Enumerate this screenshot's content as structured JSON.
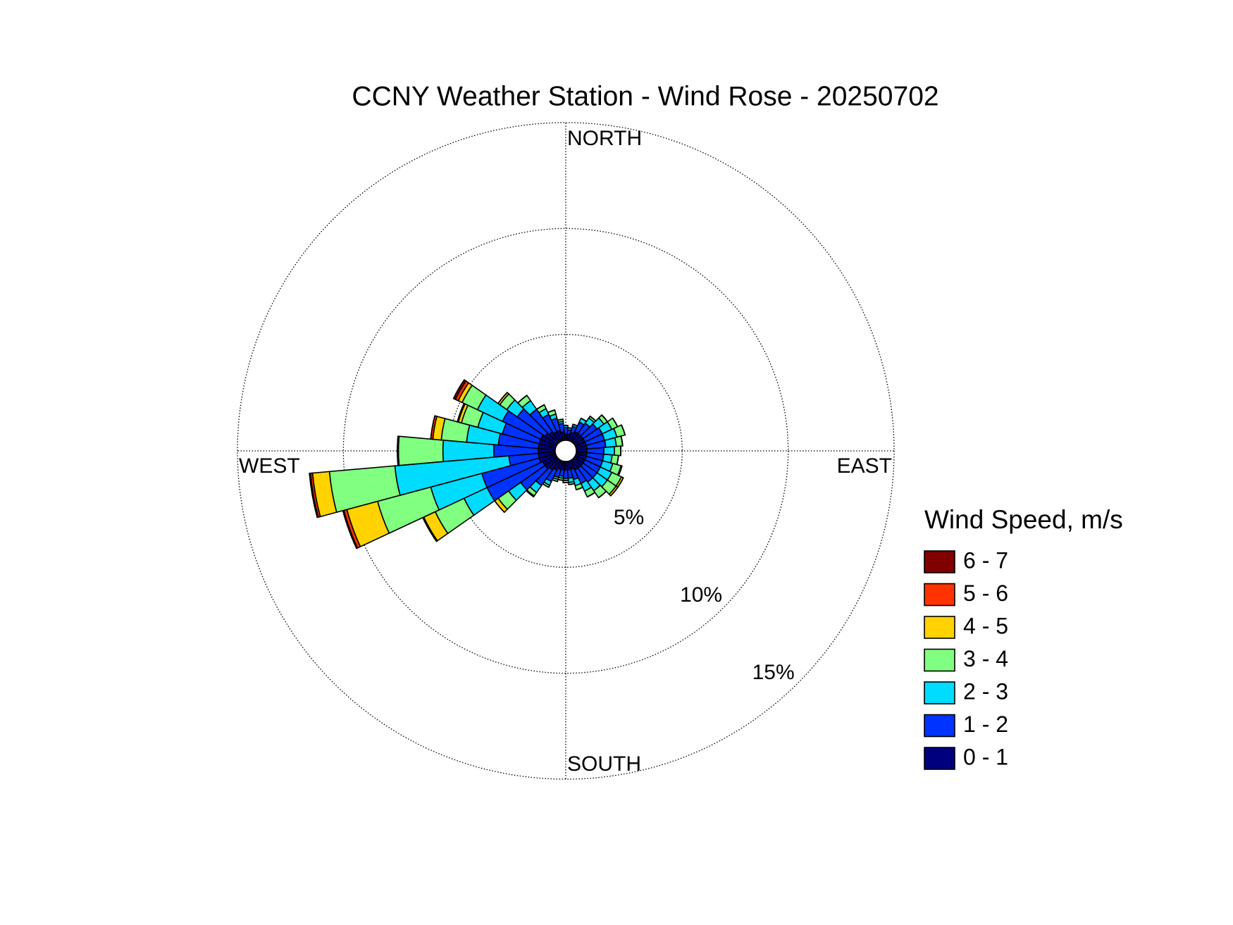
{
  "chart_data": {
    "type": "windrose",
    "title": "CCNY Weather Station - Wind Rose - 20250702",
    "legend_title": "Wind Speed, m/s",
    "directions": [
      0,
      10,
      20,
      30,
      40,
      50,
      60,
      70,
      80,
      90,
      100,
      110,
      120,
      130,
      140,
      150,
      160,
      170,
      180,
      190,
      200,
      210,
      220,
      230,
      240,
      250,
      260,
      270,
      280,
      290,
      300,
      310,
      320,
      330,
      340,
      350
    ],
    "direction_labels": [
      {
        "value": 0,
        "label": "NORTH"
      },
      {
        "value": 90,
        "label": "EAST"
      },
      {
        "value": 180,
        "label": "SOUTH"
      },
      {
        "value": 270,
        "label": "WEST"
      }
    ],
    "rlim": [
      0,
      15
    ],
    "rticks": [
      {
        "value": 5,
        "label": "5%"
      },
      {
        "value": 10,
        "label": "10%"
      },
      {
        "value": 15,
        "label": "15%"
      }
    ],
    "grid": true,
    "series": [
      {
        "name": "0 - 1",
        "color": "#00007f",
        "values": [
          0.3,
          0.3,
          0.4,
          0.5,
          0.5,
          0.5,
          0.5,
          0.5,
          0.5,
          0.5,
          0.5,
          0.5,
          0.5,
          0.5,
          0.5,
          0.5,
          0.4,
          0.4,
          0.4,
          0.4,
          0.4,
          0.5,
          0.6,
          0.7,
          0.7,
          0.8,
          0.8,
          0.8,
          0.8,
          0.8,
          0.8,
          0.7,
          0.6,
          0.5,
          0.5,
          0.4
        ]
      },
      {
        "name": "1 - 2",
        "color": "#0033ff",
        "values": [
          0.3,
          0.2,
          0.3,
          0.5,
          0.6,
          0.8,
          0.9,
          0.9,
          0.9,
          0.8,
          0.8,
          0.8,
          0.8,
          0.8,
          0.8,
          0.7,
          0.5,
          0.4,
          0.4,
          0.3,
          0.4,
          0.6,
          0.9,
          1.4,
          2.9,
          2.8,
          1.4,
          2.1,
          1.9,
          1.8,
          2.0,
          1.6,
          1.3,
          0.9,
          0.6,
          0.4
        ]
      },
      {
        "name": "2 - 3",
        "color": "#00dcff",
        "values": [
          0.1,
          0.1,
          0.1,
          0.2,
          0.3,
          0.4,
          0.5,
          0.6,
          0.5,
          0.5,
          0.4,
          0.5,
          0.6,
          0.6,
          0.5,
          0.4,
          0.3,
          0.2,
          0.1,
          0.1,
          0.1,
          0.2,
          0.4,
          0.7,
          1.2,
          2.5,
          5.4,
          2.4,
          1.5,
          1.2,
          1.3,
          0.6,
          0.5,
          0.3,
          0.2,
          0.1
        ]
      },
      {
        "name": "3 - 4",
        "color": "#80ff80",
        "values": [
          0,
          0,
          0,
          0,
          0.1,
          0.2,
          0.3,
          0.4,
          0.3,
          0.3,
          0.3,
          0.4,
          0.5,
          0.5,
          0.4,
          0.3,
          0.2,
          0.1,
          0.1,
          0.1,
          0.1,
          0.1,
          0.2,
          0.6,
          1.5,
          2.6,
          3.1,
          2.1,
          1.2,
          0.8,
          0.8,
          0.4,
          0.3,
          0.2,
          0.2,
          0.1
        ]
      },
      {
        "name": "4 - 5",
        "color": "#ffd200",
        "values": [
          0,
          0,
          0,
          0,
          0,
          0,
          0,
          0,
          0,
          0,
          0,
          0.05,
          0.1,
          0.1,
          0,
          0,
          0,
          0,
          0,
          0,
          0,
          0,
          0.05,
          0.2,
          0.6,
          1.5,
          0.8,
          0.05,
          0.4,
          0.15,
          0.2,
          0.1,
          0,
          0,
          0,
          0
        ]
      },
      {
        "name": "5 - 6",
        "color": "#ff3300",
        "values": [
          0,
          0,
          0,
          0,
          0,
          0,
          0,
          0,
          0,
          0,
          0,
          0,
          0,
          0,
          0,
          0,
          0,
          0,
          0,
          0,
          0,
          0,
          0,
          0,
          0.05,
          0.15,
          0.1,
          0,
          0.1,
          0.05,
          0.15,
          0,
          0,
          0,
          0,
          0
        ]
      },
      {
        "name": "6 - 7",
        "color": "#800000",
        "values": [
          0,
          0,
          0,
          0,
          0,
          0,
          0,
          0,
          0,
          0,
          0,
          0,
          0,
          0,
          0,
          0,
          0,
          0,
          0,
          0,
          0,
          0,
          0,
          0,
          0,
          0.05,
          0.05,
          0,
          0,
          0,
          0.1,
          0,
          0,
          0,
          0,
          0
        ]
      }
    ]
  }
}
